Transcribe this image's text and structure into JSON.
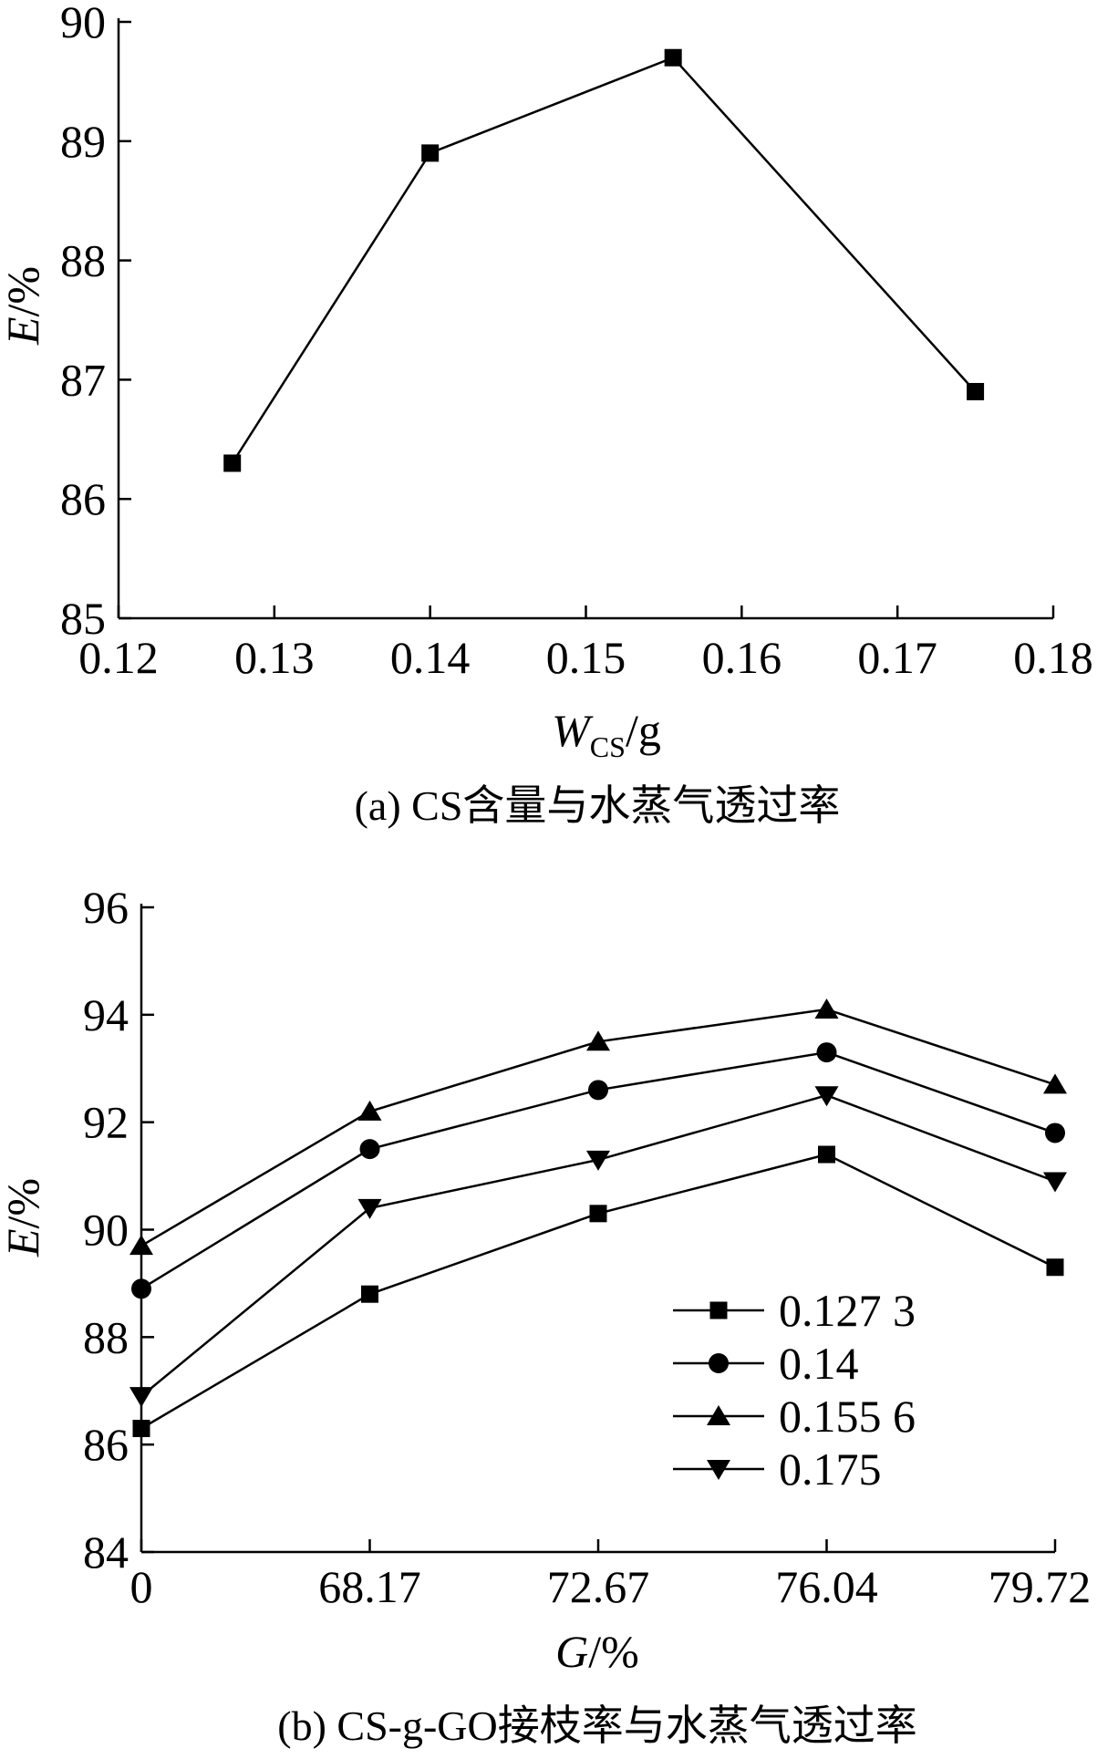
{
  "chart_data": [
    {
      "type": "line",
      "caption": "(a) CS含量与水蒸气透过率",
      "xlabel": {
        "main": "W",
        "sub": "CS",
        "unit": "/g"
      },
      "ylabel": {
        "main": "E",
        "unit": "/%"
      },
      "xlim": [
        0.12,
        0.18
      ],
      "ylim": [
        85,
        90
      ],
      "xticks": [
        "0.12",
        "0.13",
        "0.14",
        "0.15",
        "0.16",
        "0.17",
        "0.18"
      ],
      "yticks": [
        "85",
        "86",
        "87",
        "88",
        "89",
        "90"
      ],
      "x": [
        0.1273,
        0.14,
        0.1556,
        0.175
      ],
      "series": [
        {
          "marker": "square",
          "values": [
            86.3,
            88.9,
            89.7,
            86.9
          ]
        }
      ]
    },
    {
      "type": "line",
      "caption": "(b) CS-g-GO接枝率与水蒸气透过率",
      "xlabel": {
        "main": "G",
        "unit": "/%"
      },
      "ylabel": {
        "main": "E",
        "unit": "/%"
      },
      "ylim": [
        84,
        96
      ],
      "categories": [
        "0",
        "68.17",
        "72.67",
        "76.04",
        "79.72"
      ],
      "yticks": [
        "84",
        "86",
        "88",
        "90",
        "92",
        "94",
        "96"
      ],
      "legend_position": "lower-right",
      "series": [
        {
          "name": "0.127 3",
          "marker": "square",
          "values": [
            86.3,
            88.8,
            90.3,
            91.4,
            89.3
          ]
        },
        {
          "name": "0.14",
          "marker": "circle",
          "values": [
            88.9,
            91.5,
            92.6,
            93.3,
            91.8
          ]
        },
        {
          "name": "0.155 6",
          "marker": "triangle-up",
          "values": [
            89.7,
            92.2,
            93.5,
            94.1,
            92.7
          ]
        },
        {
          "name": "0.175",
          "marker": "triangle-down",
          "values": [
            86.9,
            90.4,
            91.3,
            92.5,
            90.9
          ]
        }
      ]
    }
  ]
}
